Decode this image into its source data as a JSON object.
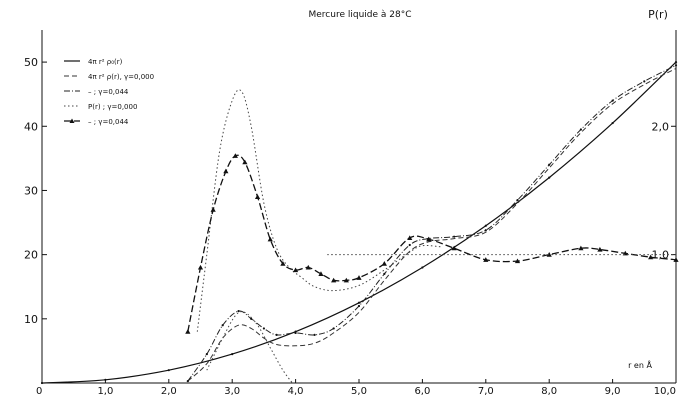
{
  "chart_data": {
    "type": "line",
    "title": "Mercure liquide à 28°C",
    "xlabel": "r en Å",
    "ylabel_right": "P(r)",
    "xlim": [
      0,
      10
    ],
    "ylim_left": [
      0,
      55
    ],
    "ylim_right": [
      0,
      2.75
    ],
    "left_ticks": [
      {
        "value": 10,
        "label": "10"
      },
      {
        "value": 20,
        "label": "20"
      },
      {
        "value": 30,
        "label": "30"
      },
      {
        "value": 40,
        "label": "40"
      },
      {
        "value": 50,
        "label": "50"
      }
    ],
    "right_ticks": [
      {
        "value": 1.0,
        "label": "1,0"
      },
      {
        "value": 2.0,
        "label": "2,0"
      }
    ],
    "x_ticks": [
      {
        "value": 0,
        "label": "0"
      },
      {
        "value": 1,
        "label": "1,0"
      },
      {
        "value": 2,
        "label": "2,0"
      },
      {
        "value": 3,
        "label": "3,0"
      },
      {
        "value": 4,
        "label": "4,0"
      },
      {
        "value": 5,
        "label": "5,0"
      },
      {
        "value": 6,
        "label": "6,0"
      },
      {
        "value": 7,
        "label": "7,0"
      },
      {
        "value": 8,
        "label": "8,0"
      },
      {
        "value": 9,
        "label": "9,0"
      },
      {
        "value": 10,
        "label": "10,0"
      }
    ],
    "legend": [
      {
        "label": "4π r² ρ₀(r)",
        "style": "solid"
      },
      {
        "label": "4π r² ρ(r), γ=0,000",
        "style": "dashed"
      },
      {
        "label": "–      ; γ=0,044",
        "style": "dashdot"
      },
      {
        "label": "P(r)   ; γ=0,000",
        "style": "dotted"
      },
      {
        "label": "–      ; γ=0,044",
        "style": "dash-triangle"
      }
    ],
    "series": [
      {
        "style": "solid",
        "axis": "left",
        "x": [
          0,
          1,
          2,
          3,
          4,
          5,
          6,
          7,
          8,
          9,
          10
        ],
        "y": [
          0,
          0.5,
          2.0,
          4.5,
          8.0,
          12.5,
          18.0,
          24.5,
          32.0,
          40.5,
          50.0
        ]
      },
      {
        "style": "dashed",
        "axis": "left",
        "x": [
          2.3,
          2.6,
          2.85,
          3.1,
          3.3,
          3.5,
          3.7,
          4.0,
          4.3,
          4.6,
          5.0,
          5.4,
          5.8,
          6.1,
          6.5,
          7.0,
          7.5,
          8.0,
          8.5,
          9.0,
          9.5,
          10.0
        ],
        "y": [
          0.3,
          3.0,
          7.0,
          9.0,
          8.5,
          7.0,
          6.0,
          5.8,
          6.2,
          7.8,
          11.0,
          16.0,
          20.5,
          22.0,
          22.5,
          23.5,
          28.0,
          33.5,
          39.0,
          43.5,
          46.5,
          49.0
        ]
      },
      {
        "style": "dashdot",
        "axis": "left",
        "x": [
          2.3,
          2.6,
          2.85,
          3.1,
          3.3,
          3.5,
          3.7,
          4.0,
          4.3,
          4.6,
          5.0,
          5.4,
          5.8,
          6.1,
          6.5,
          7.0,
          7.5,
          8.0,
          8.5,
          9.0,
          9.5,
          10.0
        ],
        "y": [
          0.3,
          4.5,
          9.0,
          11.2,
          10.0,
          8.5,
          7.5,
          7.8,
          7.5,
          8.5,
          12.0,
          17.0,
          21.5,
          22.5,
          22.8,
          23.8,
          28.5,
          34.0,
          39.5,
          44.0,
          47.0,
          49.5
        ]
      },
      {
        "style": "dotted",
        "axis": "right",
        "x": [
          2.45,
          2.6,
          2.8,
          3.0,
          3.15,
          3.3,
          3.5,
          3.7,
          3.9,
          4.1,
          4.3,
          4.6,
          5.0,
          5.4,
          5.8,
          6.0,
          6.3
        ],
        "y": [
          0.4,
          1.0,
          1.8,
          2.2,
          2.27,
          2.0,
          1.4,
          1.05,
          0.9,
          0.82,
          0.75,
          0.72,
          0.76,
          0.88,
          1.02,
          1.07,
          1.06
        ]
      },
      {
        "style": "dash-triangle",
        "axis": "right",
        "x": [
          2.3,
          2.5,
          2.7,
          2.9,
          3.05,
          3.2,
          3.4,
          3.6,
          3.8,
          4.0,
          4.2,
          4.4,
          4.6,
          4.8,
          5.0,
          5.4,
          5.8,
          6.1,
          6.5,
          7.0,
          7.5,
          8.0,
          8.5,
          8.8,
          9.2,
          9.6,
          10.0
        ],
        "y": [
          0.4,
          0.9,
          1.35,
          1.65,
          1.77,
          1.72,
          1.45,
          1.12,
          0.93,
          0.88,
          0.9,
          0.85,
          0.8,
          0.8,
          0.82,
          0.93,
          1.13,
          1.12,
          1.05,
          0.96,
          0.95,
          1.0,
          1.05,
          1.04,
          1.01,
          0.98,
          0.96
        ]
      },
      {
        "style": "dotted",
        "axis": "left",
        "note": "reference level P(r)=1",
        "x": [
          4.5,
          10.0
        ],
        "y": [
          20,
          20
        ]
      },
      {
        "style": "dotted",
        "axis": "left",
        "note": "first-peak decomposition",
        "x": [
          2.6,
          2.85,
          3.05,
          3.2,
          3.4,
          3.6,
          3.8,
          3.95
        ],
        "y": [
          2.0,
          7.0,
          10.5,
          11.0,
          9.0,
          5.5,
          2.0,
          0
        ]
      }
    ]
  }
}
